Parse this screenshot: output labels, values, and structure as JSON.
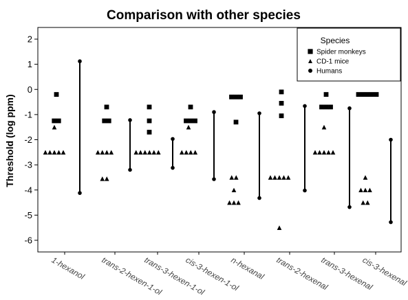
{
  "chart_data": {
    "type": "scatter",
    "title": "Comparison with other species",
    "xlabel": "",
    "ylabel": "Threshold (log ppm)",
    "ylim": [
      -6.5,
      2.4
    ],
    "yticks": [
      2,
      1,
      0,
      -1,
      -2,
      -3,
      -4,
      -5,
      -6
    ],
    "grid": false,
    "legend_position": "top-right",
    "legend_title": "Species",
    "categories": [
      "1-hexanol",
      "trans-2-hexen-1-ol",
      "trans-3-hexen-1-ol",
      "cis-3-hexen-1-ol",
      "n-hexanal",
      "trans-2-hexenal",
      "trans-3-hexenal",
      "cis-3-hexenal"
    ],
    "series": [
      {
        "name": "Spider monkeys",
        "marker": "square",
        "points": [
          [
            [
              "1-hexanol"
            ],
            [
              -0.2,
              -1.25,
              -1.25
            ]
          ],
          [
            [
              "trans-2-hexen-1-ol"
            ],
            [
              -0.7,
              -1.25,
              -1.25
            ]
          ],
          [
            [
              "trans-3-hexen-1-ol"
            ],
            [
              -0.7,
              -1.25,
              -1.7
            ]
          ],
          [
            [
              "cis-3-hexen-1-ol"
            ],
            [
              -0.7,
              -1.25,
              -1.25,
              -1.25
            ]
          ],
          [
            [
              "n-hexanal"
            ],
            [
              -0.3,
              -0.3,
              -0.3,
              -1.3
            ]
          ],
          [
            [
              "trans-2-hexenal"
            ],
            [
              -0.1,
              -0.55,
              -1.05
            ]
          ],
          [
            [
              "trans-3-hexenal"
            ],
            [
              -0.2,
              -0.7,
              -0.7,
              -0.7
            ]
          ],
          [
            [
              "cis-3-hexenal"
            ],
            [
              -0.2,
              -0.2,
              -0.2,
              -0.2,
              -0.2
            ]
          ]
        ]
      },
      {
        "name": "CD-1 mice",
        "marker": "triangle",
        "points": [
          [
            [
              "1-hexanol"
            ],
            [
              -1.5,
              -2.5,
              -2.5,
              -2.5,
              -2.5,
              -2.5
            ]
          ],
          [
            [
              "trans-2-hexen-1-ol"
            ],
            [
              -2.5,
              -2.5,
              -2.5,
              -2.5,
              -3.55,
              -3.55
            ]
          ],
          [
            [
              "trans-3-hexen-1-ol"
            ],
            [
              -2.5,
              -2.5,
              -2.5,
              -2.5,
              -2.5,
              -2.5
            ]
          ],
          [
            [
              "cis-3-hexen-1-ol"
            ],
            [
              -1.5,
              -2.5,
              -2.5,
              -2.5,
              -2.5
            ]
          ],
          [
            [
              "n-hexanal"
            ],
            [
              -3.5,
              -3.5,
              -4.0,
              -4.5,
              -4.5,
              -4.5
            ]
          ],
          [
            [
              "trans-2-hexenal"
            ],
            [
              -3.5,
              -3.5,
              -3.5,
              -3.5,
              -3.5,
              -5.5
            ]
          ],
          [
            [
              "trans-3-hexenal"
            ],
            [
              -1.5,
              -2.5,
              -2.5,
              -2.5,
              -2.5,
              -2.5
            ]
          ],
          [
            [
              "cis-3-hexenal"
            ],
            [
              -3.5,
              -4.0,
              -4.0,
              -4.0,
              -4.5,
              -4.5
            ]
          ]
        ]
      },
      {
        "name": "Humans",
        "marker": "circle",
        "ranges": [
          [
            [
              "1-hexanol"
            ],
            [
              -4.12,
              1.12
            ]
          ],
          [
            [
              "trans-2-hexen-1-ol"
            ],
            [
              -3.2,
              -1.22
            ]
          ],
          [
            [
              "trans-3-hexen-1-ol"
            ],
            [
              -3.12,
              -1.97
            ]
          ],
          [
            [
              "cis-3-hexen-1-ol"
            ],
            [
              -3.57,
              -0.9
            ]
          ],
          [
            [
              "n-hexanal"
            ],
            [
              -4.32,
              -0.95
            ]
          ],
          [
            [
              "trans-2-hexenal"
            ],
            [
              -4.02,
              -0.66
            ]
          ],
          [
            [
              "trans-3-hexenal"
            ],
            [
              -4.68,
              -0.75
            ]
          ],
          [
            [
              "cis-3-hexenal"
            ],
            [
              -5.28,
              -2.0
            ]
          ]
        ]
      }
    ]
  },
  "colors": {
    "markers": "#000000",
    "axis": "#000000",
    "background": "#ffffff"
  }
}
